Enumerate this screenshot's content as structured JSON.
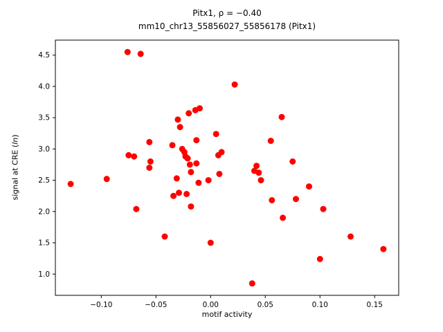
{
  "figure": {
    "background": "#ffffff"
  },
  "chart_data": {
    "type": "scatter",
    "title_line1": "Pitx1, ρ = −0.40",
    "title_line2": "mm10_chr13_55856027_55856178 (Pitx1)",
    "xlabel": "motif activity",
    "ylabel": "signal at CRE (ln)",
    "ylabel_parts": {
      "prefix": "signal at CRE (",
      "italic": "ln",
      "suffix": ")"
    },
    "marker_color": "#ff0000",
    "marker_radius": 4.5,
    "axis_color": "#000000",
    "grid": false,
    "legend": "none",
    "xlim": [
      -0.142,
      0.172
    ],
    "ylim": [
      0.66,
      4.74
    ],
    "xticks": {
      "values": [
        -0.1,
        -0.05,
        0.0,
        0.05,
        0.1,
        0.15
      ],
      "labels": [
        "−0.10",
        "−0.05",
        "0.00",
        "0.05",
        "0.10",
        "0.15"
      ]
    },
    "yticks": {
      "values": [
        1.0,
        1.5,
        2.0,
        2.5,
        3.0,
        3.5,
        4.0,
        4.5
      ],
      "labels": [
        "1.0",
        "1.5",
        "2.0",
        "2.5",
        "3.0",
        "3.5",
        "4.0",
        "4.5"
      ]
    },
    "points": [
      [
        -0.128,
        2.44
      ],
      [
        -0.095,
        2.52
      ],
      [
        -0.076,
        4.55
      ],
      [
        -0.075,
        2.9
      ],
      [
        -0.07,
        2.88
      ],
      [
        -0.068,
        2.04
      ],
      [
        -0.064,
        4.52
      ],
      [
        -0.056,
        3.11
      ],
      [
        -0.056,
        2.7
      ],
      [
        -0.055,
        2.8
      ],
      [
        -0.042,
        1.6
      ],
      [
        -0.035,
        3.06
      ],
      [
        -0.034,
        2.25
      ],
      [
        -0.031,
        2.53
      ],
      [
        -0.03,
        3.47
      ],
      [
        -0.029,
        2.3
      ],
      [
        -0.028,
        3.35
      ],
      [
        -0.026,
        3.0
      ],
      [
        -0.024,
        2.95
      ],
      [
        -0.023,
        2.88
      ],
      [
        -0.022,
        2.28
      ],
      [
        -0.021,
        2.85
      ],
      [
        -0.02,
        3.57
      ],
      [
        -0.019,
        2.75
      ],
      [
        -0.018,
        2.63
      ],
      [
        -0.018,
        2.08
      ],
      [
        -0.014,
        3.62
      ],
      [
        -0.013,
        3.14
      ],
      [
        -0.013,
        2.77
      ],
      [
        -0.011,
        2.46
      ],
      [
        -0.01,
        3.65
      ],
      [
        -0.002,
        2.5
      ],
      [
        0.0,
        1.5
      ],
      [
        0.005,
        3.24
      ],
      [
        0.007,
        2.9
      ],
      [
        0.008,
        2.6
      ],
      [
        0.01,
        2.95
      ],
      [
        0.022,
        4.03
      ],
      [
        0.038,
        0.85
      ],
      [
        0.04,
        2.65
      ],
      [
        0.042,
        2.73
      ],
      [
        0.044,
        2.62
      ],
      [
        0.046,
        2.5
      ],
      [
        0.055,
        3.13
      ],
      [
        0.056,
        2.18
      ],
      [
        0.065,
        3.51
      ],
      [
        0.066,
        1.9
      ],
      [
        0.075,
        2.8
      ],
      [
        0.078,
        2.2
      ],
      [
        0.09,
        2.4
      ],
      [
        0.1,
        1.24
      ],
      [
        0.103,
        2.04
      ],
      [
        0.128,
        1.6
      ],
      [
        0.158,
        1.4
      ]
    ]
  }
}
